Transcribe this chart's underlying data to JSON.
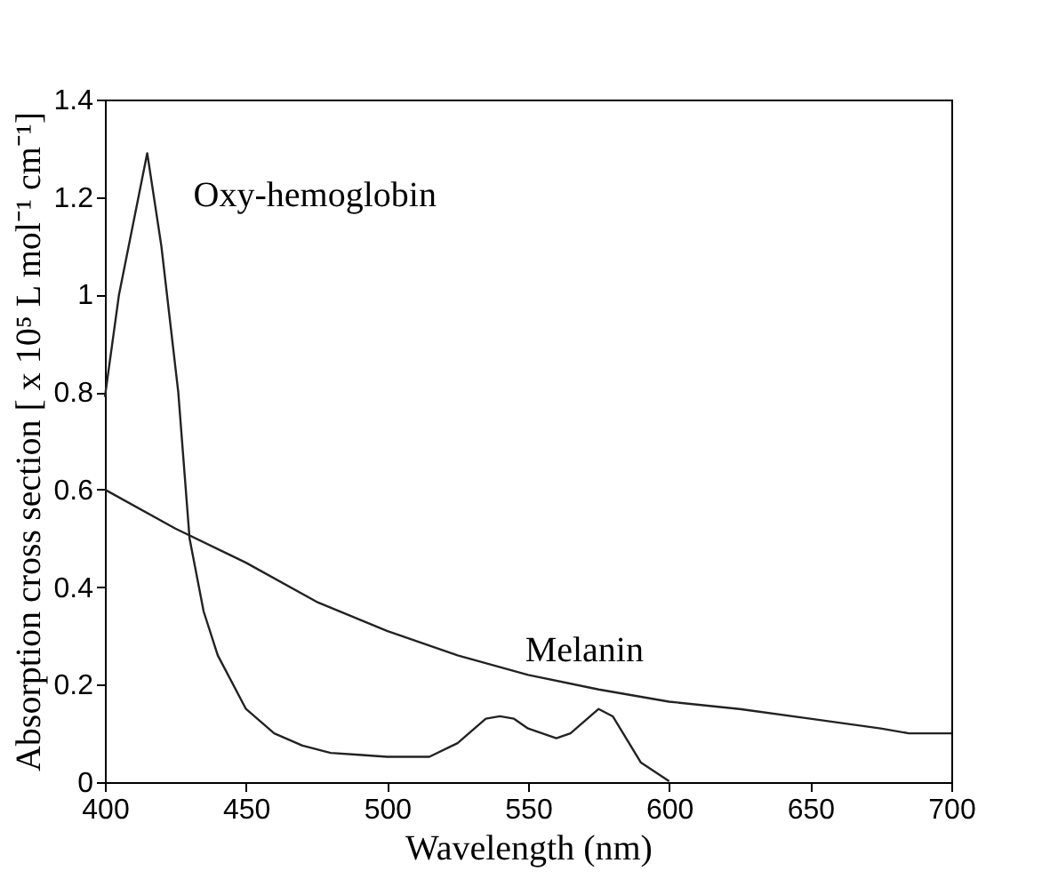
{
  "chart_data": {
    "type": "line",
    "xlabel": "Wavelength (nm)",
    "ylabel": "Absorption cross section [ x 10⁵ L mol⁻¹ cm⁻¹]",
    "xlim": [
      400,
      700
    ],
    "xticks": [
      400,
      450,
      500,
      550,
      600,
      650,
      700
    ],
    "ylim": [
      0,
      1.4
    ],
    "yticks": [
      0,
      0.2,
      0.4,
      0.6,
      0.8,
      1,
      1.2,
      1.4
    ],
    "grid": false,
    "series": [
      {
        "name": "Oxy-hemoglobin",
        "color": "#222222",
        "x": [
          400,
          405,
          415,
          420,
          426,
          430,
          435,
          440,
          450,
          460,
          470,
          480,
          490,
          500,
          515,
          525,
          535,
          540,
          545,
          550,
          560,
          565,
          575,
          580,
          590,
          600
        ],
        "values": [
          0.79,
          1.0,
          1.29,
          1.1,
          0.8,
          0.5,
          0.35,
          0.26,
          0.15,
          0.1,
          0.075,
          0.06,
          0.056,
          0.052,
          0.052,
          0.08,
          0.13,
          0.135,
          0.13,
          0.11,
          0.09,
          0.1,
          0.15,
          0.135,
          0.04,
          0.002
        ]
      },
      {
        "name": "Melanin",
        "color": "#222222",
        "x": [
          400,
          425,
          450,
          475,
          500,
          525,
          550,
          575,
          600,
          625,
          650,
          675,
          685,
          700
        ],
        "values": [
          0.6,
          0.52,
          0.45,
          0.37,
          0.31,
          0.26,
          0.22,
          0.19,
          0.165,
          0.15,
          0.13,
          0.11,
          0.1,
          0.1
        ]
      }
    ]
  }
}
